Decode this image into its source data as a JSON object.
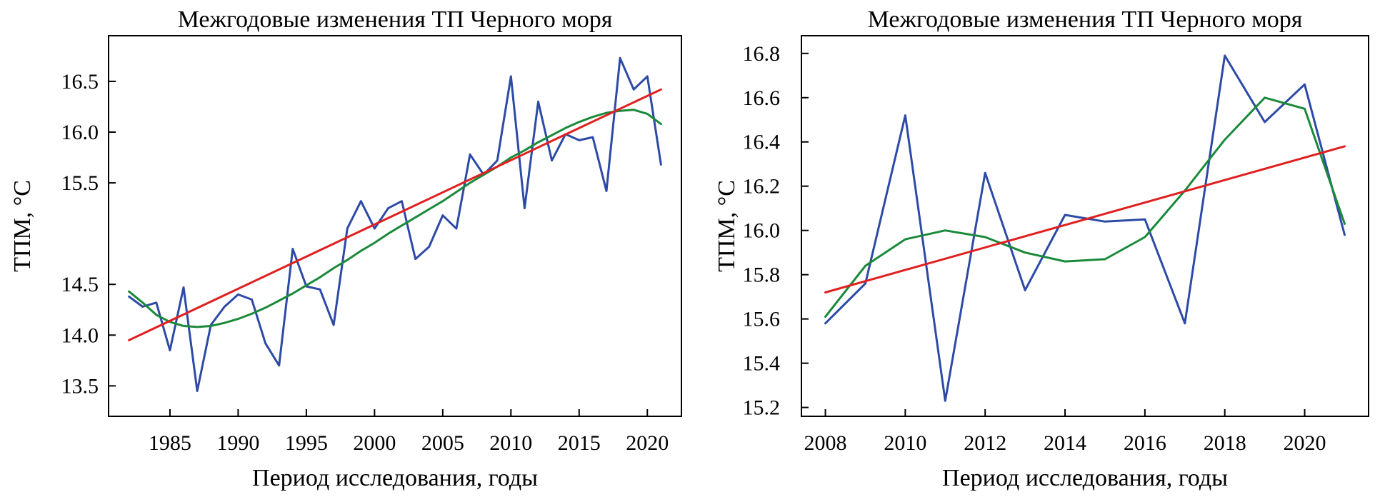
{
  "chart_data": [
    {
      "type": "line",
      "title": "Межгодовые изменения ТП Черного моря",
      "xlabel": "Период исследования, годы",
      "ylabel": "ТПМ, °С",
      "xlim": [
        1980.5,
        2022.5
      ],
      "ylim": [
        13.2,
        16.95
      ],
      "xticks": [
        1985,
        1990,
        1995,
        2000,
        2005,
        2010,
        2015,
        2020
      ],
      "yticks": [
        13.5,
        14.0,
        14.5,
        15.5,
        16.0,
        16.5
      ],
      "ytick_labels": [
        "13.5",
        "14.0",
        "14.5",
        "15.5",
        "16.0",
        "16.5"
      ],
      "grid": false,
      "series": [
        {
          "color": "#2d4aa6",
          "x": [
            1982,
            1983,
            1984,
            1985,
            1986,
            1987,
            1988,
            1989,
            1990,
            1991,
            1992,
            1993,
            1994,
            1995,
            1996,
            1997,
            1998,
            1999,
            2000,
            2001,
            2002,
            2003,
            2004,
            2005,
            2006,
            2007,
            2008,
            2009,
            2010,
            2011,
            2012,
            2013,
            2014,
            2015,
            2016,
            2017,
            2018,
            2019,
            2020,
            2021
          ],
          "y": [
            14.38,
            14.28,
            14.32,
            13.85,
            14.47,
            13.45,
            14.1,
            14.28,
            14.4,
            14.35,
            13.92,
            13.7,
            14.85,
            14.48,
            14.45,
            14.1,
            15.05,
            15.32,
            15.05,
            15.25,
            15.32,
            14.75,
            14.87,
            15.18,
            15.05,
            15.78,
            15.58,
            15.72,
            16.55,
            15.25,
            16.3,
            15.72,
            15.98,
            15.92,
            15.95,
            15.42,
            16.73,
            16.42,
            16.55,
            15.68
          ]
        },
        {
          "color": "#1a8a3a",
          "x": [
            1982,
            1983,
            1984,
            1985,
            1986,
            1987,
            1988,
            1989,
            1990,
            1991,
            1992,
            1993,
            1994,
            1995,
            1996,
            1997,
            1998,
            1999,
            2000,
            2001,
            2002,
            2003,
            2004,
            2005,
            2006,
            2007,
            2008,
            2009,
            2010,
            2011,
            2012,
            2013,
            2014,
            2015,
            2016,
            2017,
            2018,
            2019,
            2020,
            2021
          ],
          "y": [
            14.43,
            14.32,
            14.2,
            14.13,
            14.09,
            14.08,
            14.09,
            14.12,
            14.16,
            14.21,
            14.27,
            14.34,
            14.41,
            14.49,
            14.57,
            14.66,
            14.74,
            14.83,
            14.91,
            15.0,
            15.08,
            15.16,
            15.24,
            15.32,
            15.41,
            15.5,
            15.58,
            15.66,
            15.75,
            15.82,
            15.9,
            15.97,
            16.04,
            16.1,
            16.15,
            16.19,
            16.21,
            16.22,
            16.18,
            16.08
          ]
        },
        {
          "color": "#e02020",
          "x": [
            1982,
            2021
          ],
          "y": [
            13.95,
            16.42
          ]
        }
      ]
    },
    {
      "type": "line",
      "title": "Межгодовые изменения ТП Черного моря",
      "xlabel": "Период исследования, годы",
      "ylabel": "ТПМ, °С",
      "xlim": [
        2007.4,
        2021.6
      ],
      "ylim": [
        15.16,
        16.88
      ],
      "xticks": [
        2008,
        2010,
        2012,
        2014,
        2016,
        2018,
        2020
      ],
      "yticks": [
        15.2,
        15.4,
        15.6,
        15.8,
        16.0,
        16.2,
        16.4,
        16.6,
        16.8
      ],
      "ytick_labels": [
        "15.2",
        "15.4",
        "15.6",
        "15.8",
        "16.0",
        "16.2",
        "16.4",
        "16.6",
        "16.8"
      ],
      "grid": false,
      "series": [
        {
          "color": "#2d4aa6",
          "x": [
            2008,
            2009,
            2010,
            2011,
            2012,
            2013,
            2014,
            2015,
            2016,
            2017,
            2018,
            2019,
            2020,
            2021
          ],
          "y": [
            15.58,
            15.76,
            16.52,
            15.23,
            16.26,
            15.73,
            16.07,
            16.04,
            16.05,
            15.58,
            16.79,
            16.49,
            16.66,
            15.98
          ]
        },
        {
          "color": "#1a8a3a",
          "x": [
            2008,
            2009,
            2010,
            2011,
            2012,
            2013,
            2014,
            2015,
            2016,
            2017,
            2018,
            2019,
            2020,
            2021
          ],
          "y": [
            15.61,
            15.84,
            15.96,
            16.0,
            15.97,
            15.9,
            15.86,
            15.87,
            15.97,
            16.18,
            16.41,
            16.6,
            16.55,
            16.03
          ]
        },
        {
          "color": "#e02020",
          "x": [
            2008,
            2021
          ],
          "y": [
            15.72,
            16.38
          ]
        }
      ]
    }
  ]
}
